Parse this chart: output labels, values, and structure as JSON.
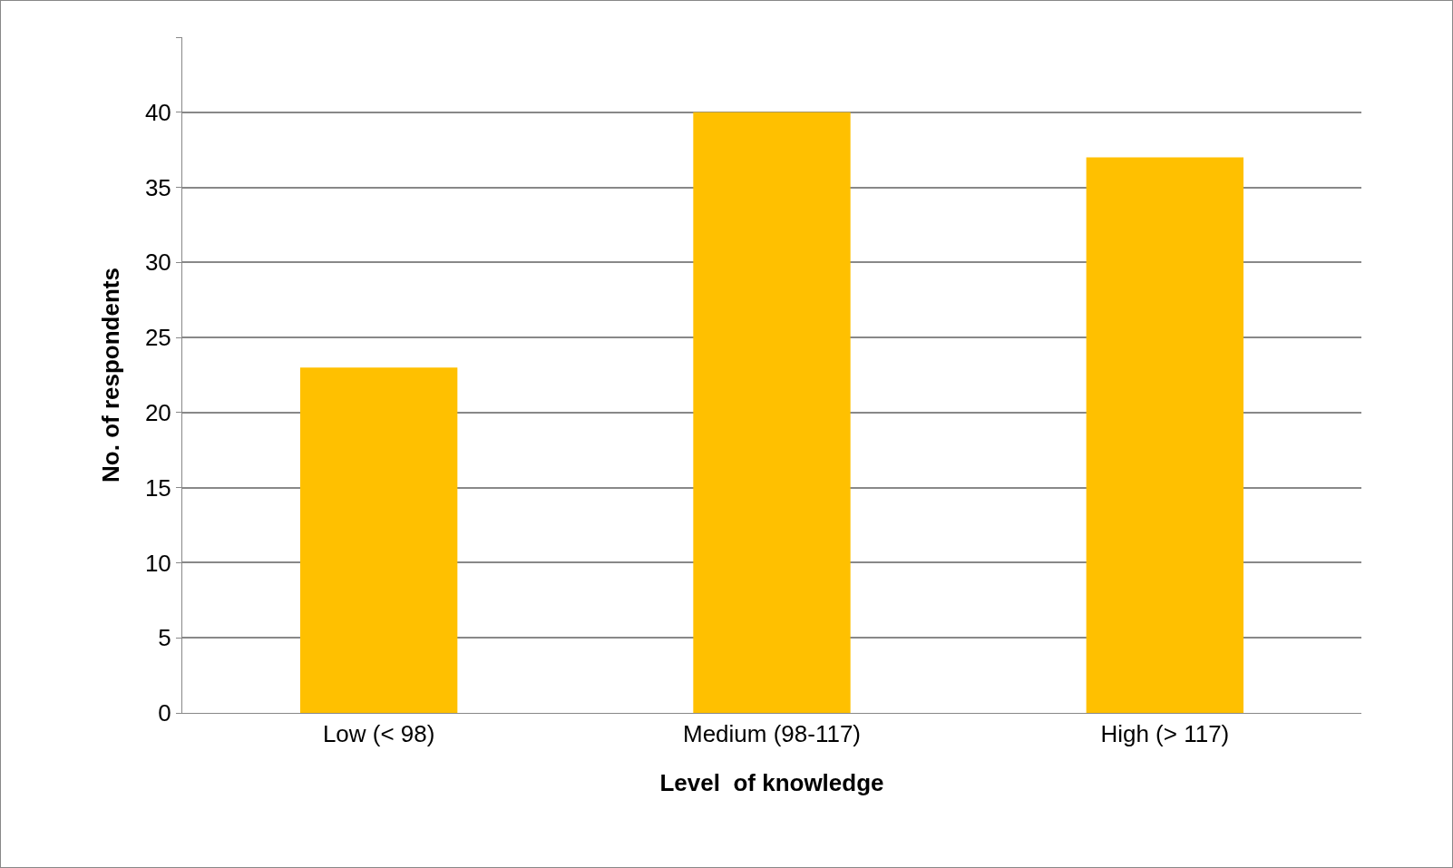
{
  "chart_data": {
    "type": "bar",
    "xlabel": "Level  of knowledge",
    "ylabel": "No. of respondents",
    "categories": [
      "Low (< 98)",
      "Medium (98-117)",
      "High (> 117)"
    ],
    "values": [
      23,
      40,
      37
    ],
    "color": "#ffc000",
    "ylim": [
      0,
      45
    ],
    "yticks": [
      0,
      5,
      10,
      15,
      20,
      25,
      30,
      35,
      40,
      {
        "value": 45,
        "label": null
      }
    ],
    "grid": "y"
  }
}
